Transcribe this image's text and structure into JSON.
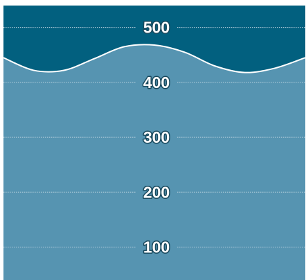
{
  "chart_data": {
    "type": "area",
    "title": "",
    "xlabel": "",
    "ylabel": "",
    "ylim": [
      40,
      540
    ],
    "y_ticks": [
      {
        "value": 100,
        "label": "100"
      },
      {
        "value": 200,
        "label": "200"
      },
      {
        "value": 300,
        "label": "300"
      },
      {
        "value": 400,
        "label": "400"
      },
      {
        "value": 500,
        "label": "500"
      }
    ],
    "x": [
      0,
      0.1,
      0.2,
      0.3,
      0.4,
      0.5,
      0.6,
      0.7,
      0.8,
      0.9,
      1.0
    ],
    "series": [
      {
        "values": [
          445,
          422,
          422,
          443,
          465,
          468,
          455,
          430,
          418,
          426,
          445
        ]
      }
    ],
    "grid": true,
    "legend": "none",
    "colors": {
      "background": "#02607f",
      "area_fill": "#5694b1",
      "area_line": "#ffffff",
      "gridline": "#b9d1de",
      "tick_label": "#ffffff",
      "label_halo": "#1a4a5e"
    }
  }
}
